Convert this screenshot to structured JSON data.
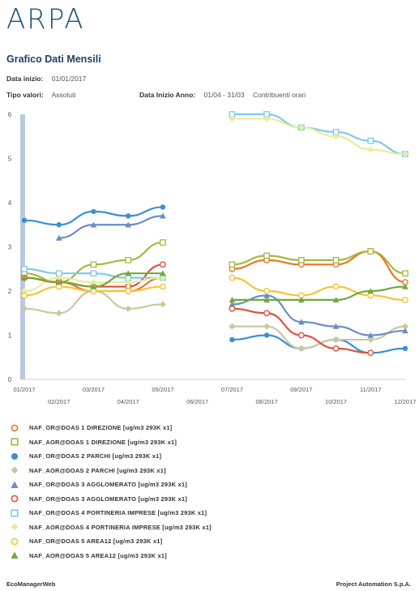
{
  "header": {
    "logo": "ARPA",
    "title": "Grafico Dati Mensili",
    "data_inizio_label": "Data inizio:",
    "data_inizio_value": "01/01/2017",
    "tipo_valori_label": "Tipo valori:",
    "tipo_valori_value": "Assoluti",
    "data_inizio_anno_label": "Data Inizio Anno:",
    "data_inizio_anno_value": "01/04 - 31/03",
    "contributi_label": "Contribuenti orari"
  },
  "footer": {
    "left": "EcoManagerWeb",
    "right": "Project Automation S.p.A."
  },
  "chart_data": {
    "type": "line",
    "ylim": [
      0,
      6
    ],
    "y_ticks": [
      "0",
      "1",
      "2",
      "3",
      "4",
      "5",
      "6"
    ],
    "categories": [
      "01/2017",
      "02/2017",
      "03/2017",
      "04/2017",
      "05/2017",
      "06/2017",
      "07/2017",
      "08/2017",
      "09/2017",
      "10/2017",
      "11/2017",
      "12/2017"
    ],
    "grid": false,
    "legend_position": "bottom",
    "series": [
      {
        "name": "NAF_OR@DOAS 1 DIREZIONE [ug/m3 293K x1]",
        "color": "#e8772e",
        "marker": "circle-open",
        "values": [
          2.3,
          2.2,
          2.0,
          2.0,
          2.3,
          null,
          2.5,
          2.7,
          2.6,
          2.6,
          2.9,
          2.2
        ]
      },
      {
        "name": "NAF_AOR@DOAS 1 DIREZIONE [ug/m3 293K x1]",
        "color": "#a6b83c",
        "marker": "square-open",
        "values": [
          2.4,
          2.2,
          2.6,
          2.7,
          3.1,
          null,
          2.6,
          2.8,
          2.7,
          2.7,
          2.9,
          2.4
        ]
      },
      {
        "name": "NAF_OR@DOAS 2 PARCHI [ug/m3 293K x1]",
        "color": "#3b8fd6",
        "marker": "circle",
        "values": [
          3.6,
          3.5,
          3.8,
          3.7,
          3.9,
          null,
          0.9,
          1.0,
          0.7,
          0.9,
          0.6,
          0.7
        ]
      },
      {
        "name": "NAF_AOR@DOAS 2 PARCHI [ug/m3 293K x1]",
        "color": "#c8c8a0",
        "marker": "diamond",
        "values": [
          1.6,
          1.5,
          2.0,
          1.6,
          1.7,
          null,
          1.2,
          1.2,
          0.7,
          0.9,
          0.9,
          1.2
        ]
      },
      {
        "name": "NAF_OR@DOAS 3 AGGLOMERATO [ug/m3 293K x1]",
        "color": "#6b8cc7",
        "marker": "triangle",
        "values": [
          null,
          3.2,
          3.5,
          3.5,
          3.7,
          null,
          1.7,
          1.9,
          1.3,
          1.2,
          1.0,
          1.1
        ]
      },
      {
        "name": "NAF_OR@DOAS 3 AGGLOMERATO [ug/m3 293K x1]",
        "color": "#e0503a",
        "marker": "circle-open",
        "values": [
          2.3,
          2.2,
          2.1,
          2.1,
          2.6,
          null,
          1.6,
          1.5,
          1.0,
          0.7,
          0.6,
          null
        ]
      },
      {
        "name": "NAF_OR@DOAS 4 PORTINERIA IMPRESE [ug/m3 293K x1]",
        "color": "#7ec8ea",
        "marker": "square-open",
        "values": [
          2.5,
          2.4,
          2.4,
          2.3,
          2.3,
          null,
          6.0,
          6.0,
          5.7,
          5.6,
          5.4,
          5.1
        ]
      },
      {
        "name": "NAF_AOR@DOAS 4 PORTINERIA IMPRESE [ug/m3 293K x1]",
        "color": "#e5ef9a",
        "marker": "diamond",
        "values": [
          2.0,
          2.3,
          2.2,
          2.2,
          2.3,
          null,
          5.9,
          5.9,
          5.7,
          5.5,
          5.2,
          5.1
        ]
      },
      {
        "name": "NAF_OR@DOAS 5 AREA12 [ug/m3 293K x1]",
        "color": "#f2c530",
        "marker": "circle-open",
        "values": [
          1.9,
          2.1,
          2.0,
          2.0,
          2.1,
          null,
          2.3,
          2.0,
          1.9,
          2.1,
          1.9,
          1.8
        ]
      },
      {
        "name": "NAF_AOR@DOAS 5 AREA12 [ug/m3 293K x1]",
        "color": "#72a83a",
        "marker": "triangle",
        "values": [
          2.3,
          2.2,
          2.1,
          2.4,
          2.4,
          null,
          1.8,
          1.8,
          1.8,
          1.8,
          2.0,
          2.1
        ]
      }
    ]
  }
}
